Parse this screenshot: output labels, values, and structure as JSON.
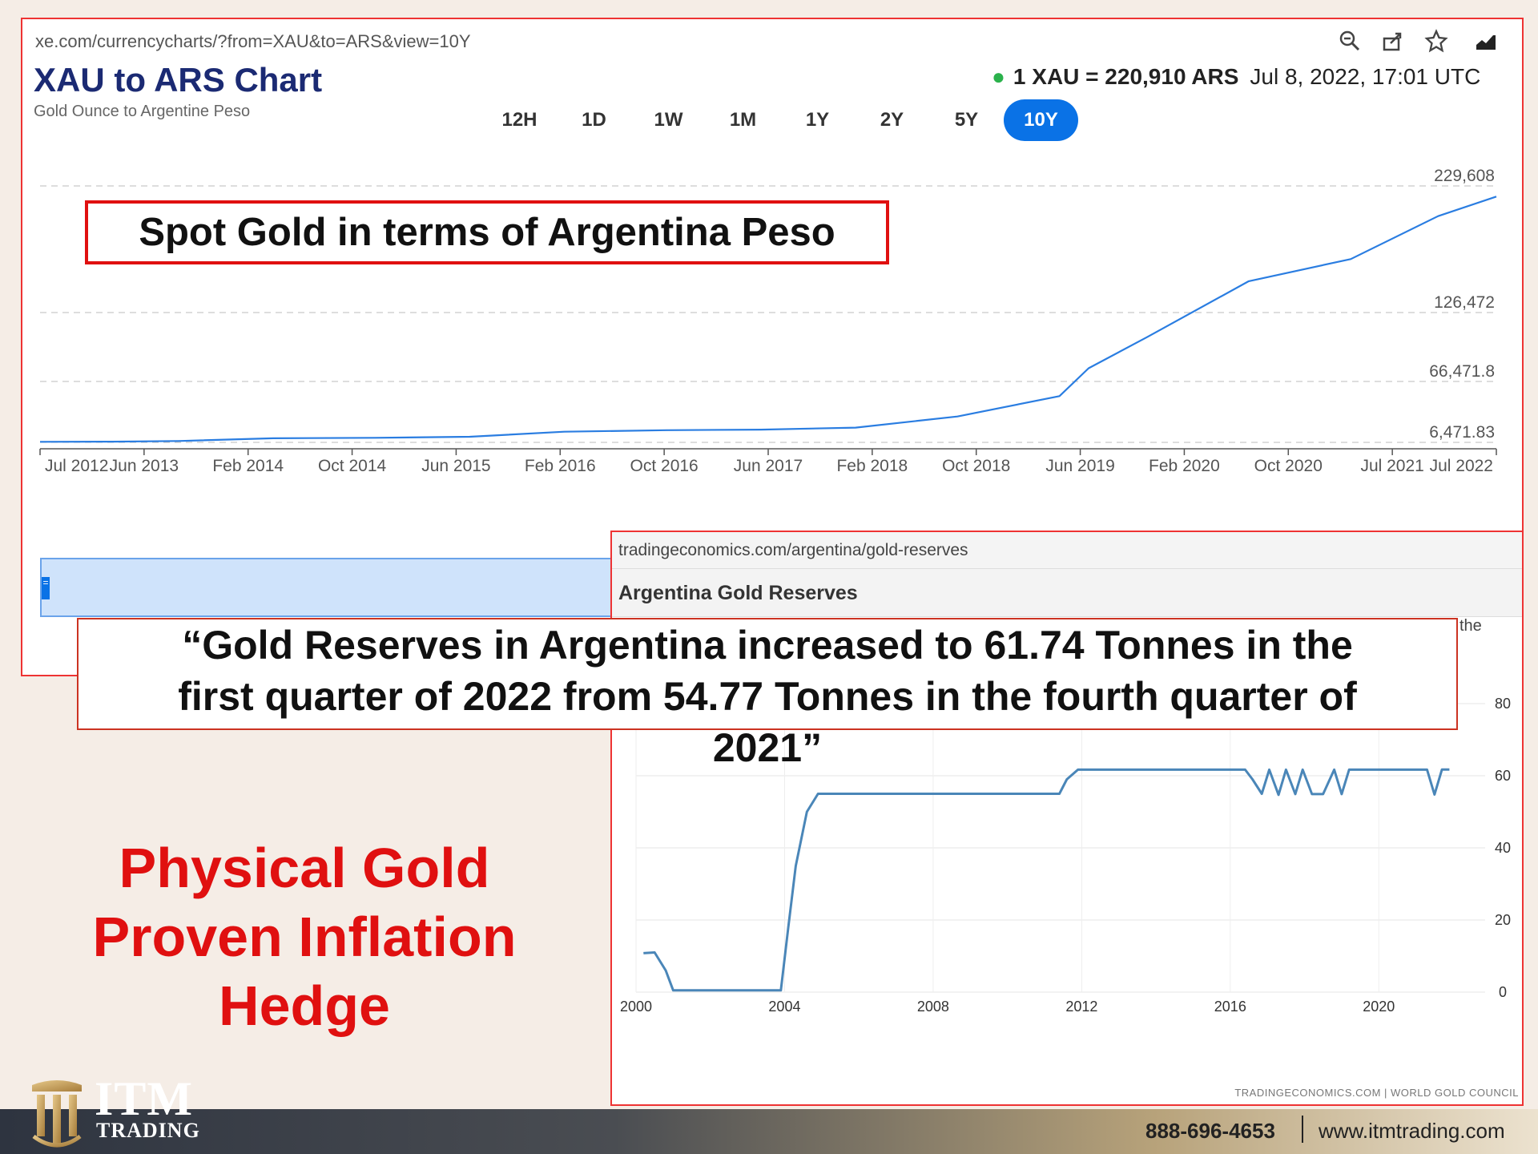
{
  "xe": {
    "url": "xe.com/currencycharts/?from=XAU&to=ARS&view=10Y",
    "title": "XAU to ARS Chart",
    "subtitle": "Gold Ounce to Argentine Peso",
    "rate_main": "1 XAU = 220,910 ARS",
    "rate_time": "Jul 8, 2022, 17:01 UTC",
    "tabs": [
      "12H",
      "1D",
      "1W",
      "1M",
      "1Y",
      "2Y",
      "5Y",
      "10Y"
    ],
    "active_tab": "10Y",
    "toolbar_icons": [
      "zoom-out-icon",
      "share-icon",
      "star-icon",
      "extension-icon"
    ]
  },
  "te": {
    "url": "tradingeconomics.com/argentina/gold-reserves",
    "header": "Argentina Gold Reserves",
    "partial_text": "the",
    "source": "TRADINGECONOMICS.COM  |  WORLD GOLD COUNCIL"
  },
  "callouts": {
    "spot_gold": "Spot Gold in terms of Argentina Peso",
    "quote_lines": [
      "“Gold Reserves in Argentina increased to 61.74 Tonnes in the",
      "first quarter of 2022 from 54.77 Tonnes in the fourth quarter of",
      "2021”"
    ],
    "tagline_lines": [
      "Physical Gold",
      "Proven Inflation",
      "Hedge"
    ]
  },
  "footer": {
    "logo_itm": "ITM",
    "logo_trading": "TRADING",
    "phone": "888-696-4653",
    "website": "www.itmtrading.com"
  },
  "colors": {
    "xe_line": "#2a7de1",
    "te_line": "#4a86b8",
    "callout_red": "#e01010",
    "xe_title": "#1b2a73",
    "active_tab": "#0a72e6"
  },
  "chart_data": [
    {
      "type": "line",
      "title": "XAU to ARS Chart",
      "x_tick_labels": [
        "Jul 2012",
        "Jun 2013",
        "Feb 2014",
        "Oct 2014",
        "Jun 2015",
        "Feb 2016",
        "Oct 2016",
        "Jun 2017",
        "Feb 2018",
        "Oct 2018",
        "Jun 2019",
        "Feb 2020",
        "Oct 2020",
        "Jul 2021",
        "Jul 2022"
      ],
      "y_tick_labels": [
        "229,608",
        "126,472",
        "66,471.8",
        "6,471.83"
      ],
      "series": [
        {
          "x": [
            2012.5,
            2013.0,
            2013.45,
            2014.1,
            2014.8,
            2015.45,
            2016.1,
            2016.8,
            2017.45,
            2018.1,
            2018.8,
            2019.5,
            2019.7,
            2020.1,
            2020.8,
            2021.5,
            2022.1,
            2022.5
          ],
          "y": [
            7000,
            7200,
            7800,
            10500,
            11000,
            12000,
            17000,
            18500,
            19000,
            21000,
            32000,
            52000,
            78000,
            105000,
            152000,
            170000,
            205000,
            220910
          ]
        }
      ]
    },
    {
      "type": "line",
      "title": "Argentina Gold Reserves",
      "x_tick_labels": [
        "2000",
        "2004",
        "2008",
        "2012",
        "2016",
        "2020"
      ],
      "y_tick_labels": [
        "0",
        "20",
        "40",
        "60",
        "80"
      ],
      "ylim": [
        0,
        80
      ],
      "series": [
        {
          "x": [
            2000.2,
            2000.5,
            2000.8,
            2001.0,
            2002,
            2003,
            2003.9,
            2004.1,
            2004.3,
            2004.6,
            2004.9,
            2005.2,
            2006,
            2008,
            2010,
            2011.4,
            2011.6,
            2011.9,
            2012.5,
            2014,
            2016,
            2016.4,
            2016.6,
            2016.85,
            2017.05,
            2017.3,
            2017.5,
            2017.75,
            2017.95,
            2018.2,
            2018.5,
            2018.8,
            2019.0,
            2019.2,
            2019.5,
            2020,
            2021,
            2021.3,
            2021.5,
            2021.7,
            2021.9
          ],
          "y": [
            10.8,
            11,
            6,
            0.5,
            0.5,
            0.5,
            0.5,
            18,
            35,
            50,
            55,
            55,
            55,
            55,
            55,
            55,
            59,
            61.7,
            61.7,
            61.7,
            61.7,
            61.7,
            59,
            55,
            61.7,
            54.7,
            61.7,
            54.9,
            61.7,
            54.9,
            54.9,
            61.7,
            54.9,
            61.7,
            61.7,
            61.7,
            61.7,
            61.7,
            54.77,
            61.74,
            61.74
          ]
        }
      ]
    }
  ]
}
